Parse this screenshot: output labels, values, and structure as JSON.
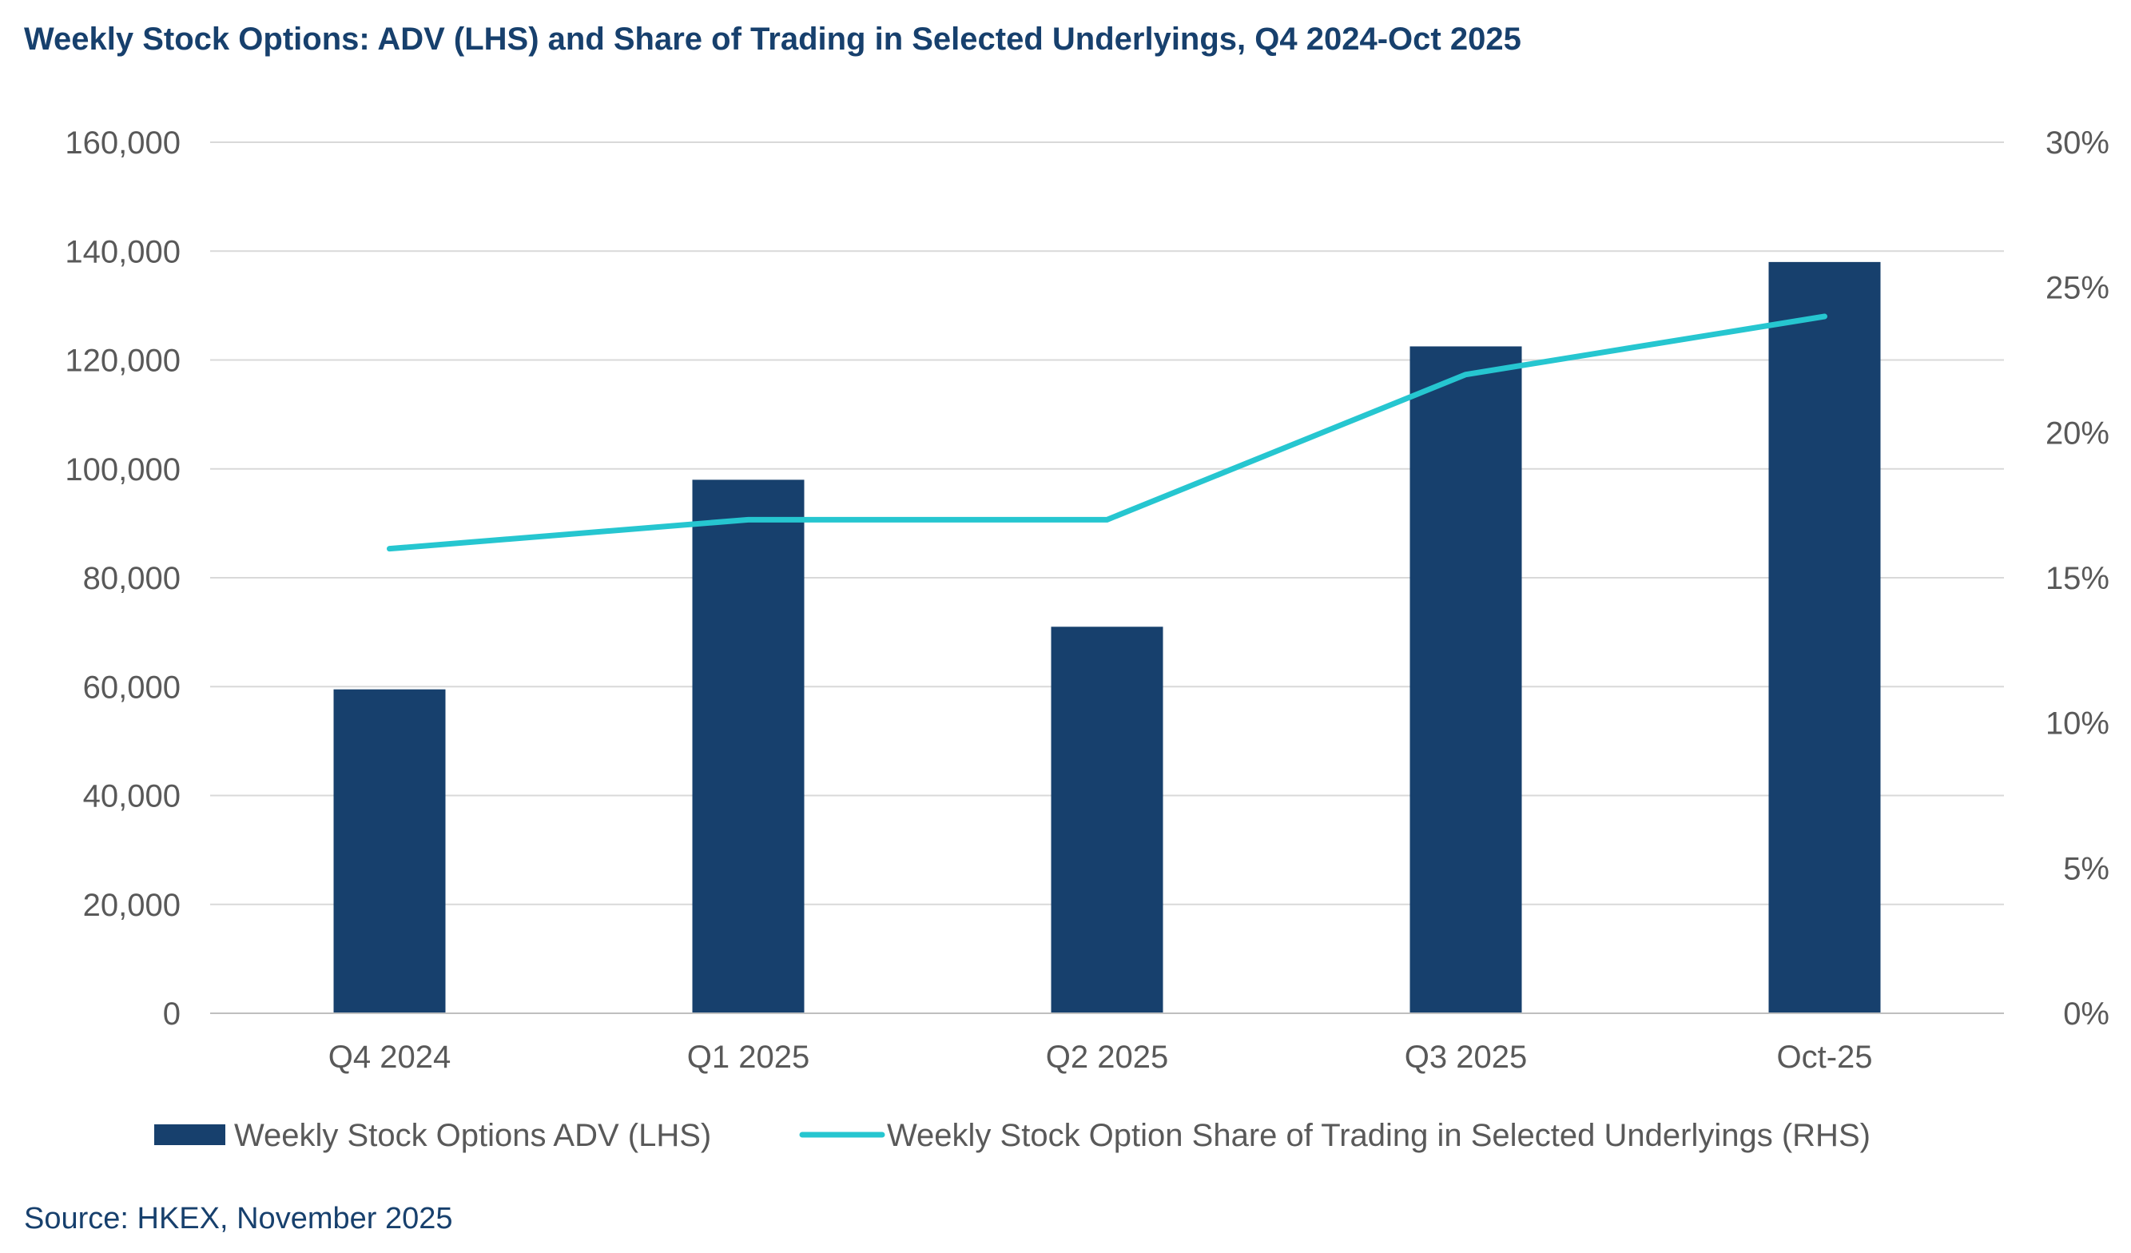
{
  "colors": {
    "title": "#17406D",
    "bar": "#17406D",
    "line": "#26C6D0",
    "grid": "#D9D9D9",
    "axis": "#BFBFBF",
    "tick_text": "#595959",
    "source": "#17406D"
  },
  "chart_data": {
    "type": "bar",
    "title": "Weekly Stock Options: ADV (LHS) and Share of Trading in Selected Underlyings, Q4 2024-Oct 2025",
    "categories": [
      "Q4 2024",
      "Q1 2025",
      "Q2 2025",
      "Q3 2025",
      "Oct-25"
    ],
    "series": [
      {
        "name": "Weekly Stock Options ADV (LHS)",
        "type": "bar",
        "axis": "left",
        "values": [
          59500,
          98000,
          71000,
          122500,
          138000
        ]
      },
      {
        "name": "Weekly Stock Option Share of Trading in Selected Underlyings (RHS)",
        "type": "line",
        "axis": "right",
        "values": [
          0.16,
          0.17,
          0.17,
          0.22,
          0.24
        ]
      }
    ],
    "y_left": {
      "lim": [
        0,
        160000
      ],
      "ticks": [
        0,
        20000,
        40000,
        60000,
        80000,
        100000,
        120000,
        140000,
        160000
      ],
      "tick_labels": [
        "0",
        "20,000",
        "40,000",
        "60,000",
        "80,000",
        "100,000",
        "120,000",
        "140,000",
        "160,000"
      ]
    },
    "y_right": {
      "lim": [
        0,
        0.3
      ],
      "ticks": [
        0,
        0.05,
        0.1,
        0.15,
        0.2,
        0.25,
        0.3
      ],
      "tick_labels": [
        "0%",
        "5%",
        "10%",
        "15%",
        "20%",
        "25%",
        "30%"
      ]
    },
    "grid": true,
    "legend_position": "bottom",
    "source": "Source: HKEX, November 2025"
  }
}
